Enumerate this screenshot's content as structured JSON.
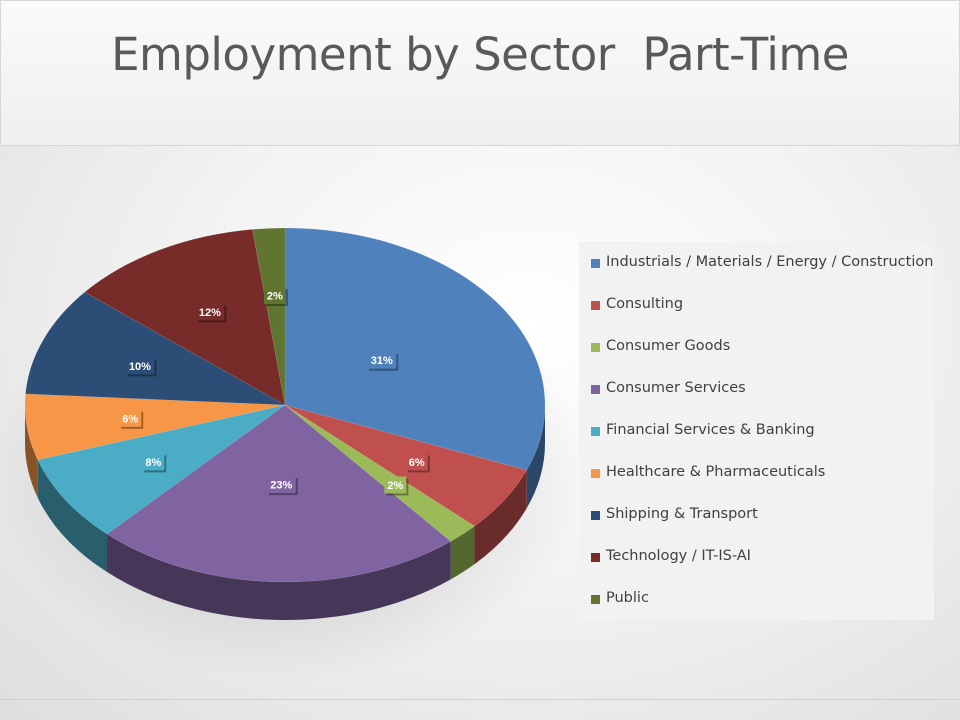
{
  "slide": {
    "title": "Employment by Sector  Part-Time"
  },
  "chart_data": {
    "type": "pie",
    "style": "3d-pie",
    "title": "Employment by Sector  Part-Time",
    "legend_position": "right",
    "categories": [
      "Industrials / Materials / Energy / Construction",
      "Consulting",
      "Consumer Goods",
      "Consumer Services",
      "Financial Services & Banking",
      "Healthcare & Pharmaceuticals",
      "Shipping & Transport",
      "Technology / IT-IS-AI",
      "Public"
    ],
    "values": [
      31,
      6,
      2,
      23,
      8,
      6,
      10,
      12,
      2
    ],
    "data_labels": [
      "31%",
      "6%",
      "2%",
      "23%",
      "8%",
      "6%",
      "10%",
      "12%",
      "2%"
    ],
    "colors": [
      "#4f81bd",
      "#c0504d",
      "#9bbb59",
      "#8064a2",
      "#4bacc6",
      "#f79646",
      "#2c4d75",
      "#772c2a",
      "#5f7530"
    ]
  }
}
